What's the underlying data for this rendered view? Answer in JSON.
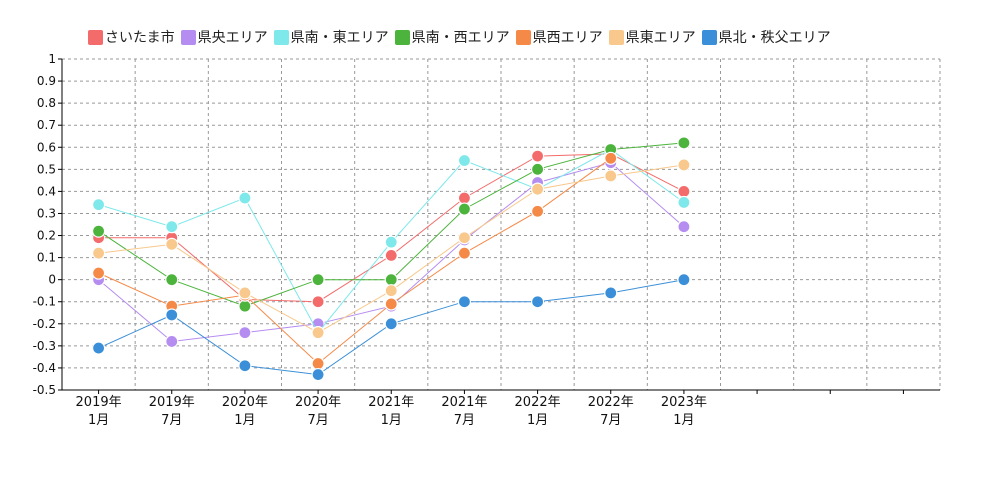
{
  "chart_data": {
    "type": "line",
    "categories": [
      "2019年\n1月",
      "2019年\n7月",
      "2020年\n1月",
      "2020年\n7月",
      "2021年\n1月",
      "2021年\n7月",
      "2022年\n1月",
      "2022年\n7月",
      "2023年\n1月"
    ],
    "extra_slots": 3,
    "ylim": [
      -0.5,
      1
    ],
    "yticks": [
      "1",
      "0.9",
      "0.8",
      "0.7",
      "0.6",
      "0.5",
      "0.4",
      "0.3",
      "0.2",
      "0.1",
      "0",
      "-0.1",
      "-0.2",
      "-0.3",
      "-0.4",
      "-0.5"
    ],
    "grid": true,
    "legend_position": "top",
    "series": [
      {
        "name": "さいたま市",
        "color": "#f36b6b",
        "values": [
          0.19,
          0.19,
          -0.09,
          -0.1,
          0.11,
          0.37,
          0.56,
          0.57,
          0.4
        ]
      },
      {
        "name": "県央エリア",
        "color": "#b58cf0",
        "values": [
          0.0,
          -0.28,
          -0.24,
          -0.2,
          -0.12,
          0.18,
          0.44,
          0.53,
          0.24
        ]
      },
      {
        "name": "県南・東エリア",
        "color": "#7ee8ea",
        "values": [
          0.34,
          0.24,
          0.37,
          -0.24,
          0.17,
          0.54,
          0.41,
          0.59,
          0.35
        ]
      },
      {
        "name": "県南・西エリア",
        "color": "#4cb43c",
        "values": [
          0.22,
          0.0,
          -0.12,
          0.0,
          0.0,
          0.32,
          0.5,
          0.59,
          0.62
        ]
      },
      {
        "name": "県西エリア",
        "color": "#f58a48",
        "values": [
          0.03,
          -0.12,
          -0.07,
          -0.38,
          -0.11,
          0.12,
          0.31,
          0.55,
          null
        ]
      },
      {
        "name": "県東エリア",
        "color": "#f8c88c",
        "values": [
          0.12,
          0.16,
          -0.06,
          -0.24,
          -0.05,
          0.19,
          0.41,
          0.47,
          0.52
        ]
      },
      {
        "name": "県北・秩父エリア",
        "color": "#3b8fd8",
        "values": [
          -0.31,
          -0.16,
          -0.39,
          -0.43,
          -0.2,
          -0.1,
          -0.1,
          -0.06,
          0.0
        ]
      }
    ]
  }
}
